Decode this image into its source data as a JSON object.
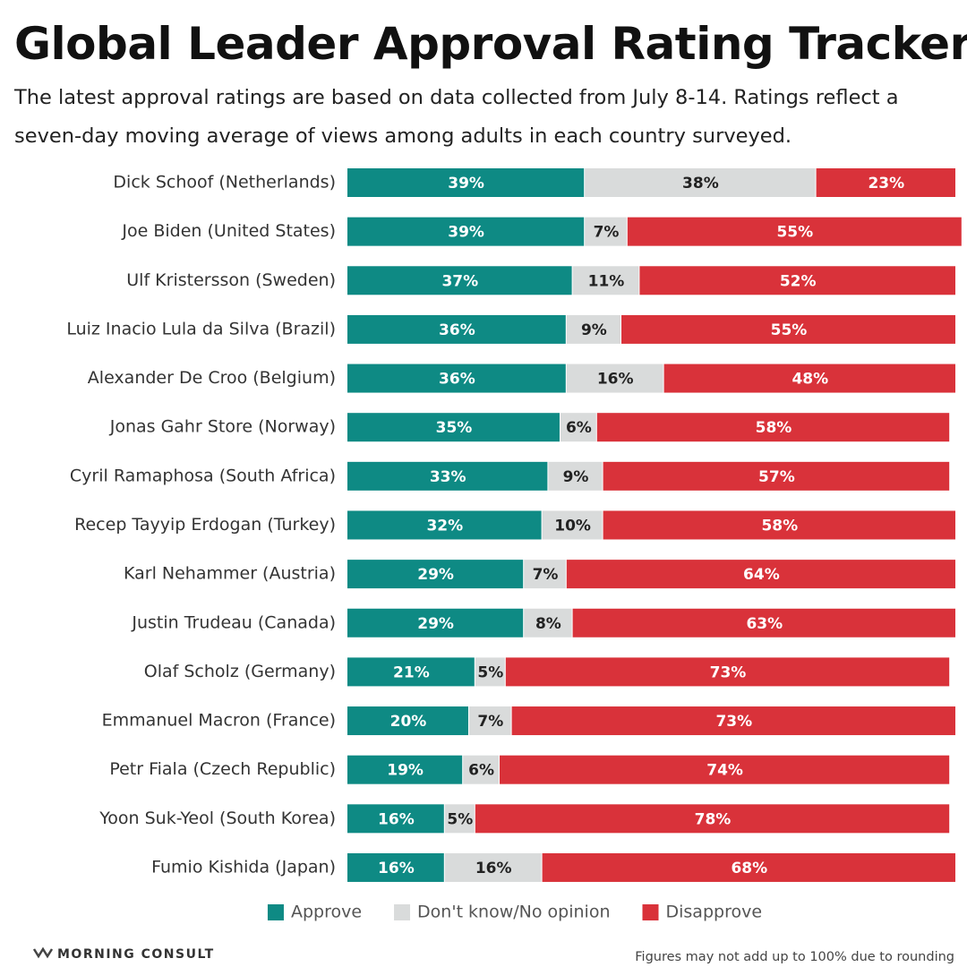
{
  "chart_data": {
    "type": "stacked-bar-horizontal",
    "title": "Global Leader Approval Rating Tracker",
    "subtitle": "The latest approval ratings are based on data collected from July 8-14. Ratings reflect a seven-day moving average of views among adults in each country surveyed.",
    "categories": [
      "Dick Schoof (Netherlands)",
      "Joe Biden (United States)",
      "Ulf Kristersson (Sweden)",
      "Luiz Inacio Lula da Silva (Brazil)",
      "Alexander De Croo (Belgium)",
      "Jonas Gahr Store (Norway)",
      "Cyril Ramaphosa (South Africa)",
      "Recep Tayyip Erdogan (Turkey)",
      "Karl Nehammer (Austria)",
      "Justin Trudeau (Canada)",
      "Olaf Scholz (Germany)",
      "Emmanuel Macron (France)",
      "Petr Fiala (Czech Republic)",
      "Yoon Suk-Yeol (South Korea)",
      "Fumio Kishida (Japan)"
    ],
    "series": [
      {
        "name": "Approve",
        "color": "#0e8a84",
        "label_color": "#ffffff",
        "values": [
          39,
          39,
          37,
          36,
          36,
          35,
          33,
          32,
          29,
          29,
          21,
          20,
          19,
          16,
          16
        ],
        "value_labels": [
          "39%",
          "39%",
          "37%",
          "36%",
          "36%",
          "35%",
          "33%",
          "32%",
          "29%",
          "29%",
          "21%",
          "20%",
          "19%",
          "16%",
          "16%"
        ]
      },
      {
        "name": "Don't know/No opinion",
        "color": "#d9dbdb",
        "label_color": "#222222",
        "values": [
          38,
          7,
          11,
          9,
          16,
          6,
          9,
          10,
          7,
          8,
          5,
          7,
          6,
          5,
          16
        ],
        "value_labels": [
          "38%",
          "7%",
          "11%",
          "9%",
          "16%",
          "6%",
          "9%",
          "10%",
          "7%",
          "8%",
          "5%",
          "7%",
          "6%",
          "5%",
          "16%"
        ]
      },
      {
        "name": "Disapprove",
        "color": "#d9323a",
        "label_color": "#ffffff",
        "values": [
          23,
          55,
          52,
          55,
          48,
          58,
          57,
          58,
          64,
          63,
          73,
          73,
          74,
          78,
          68
        ],
        "value_labels": [
          "23%",
          "55%",
          "52%",
          "55%",
          "48%",
          "58%",
          "57%",
          "58%",
          "64%",
          "63%",
          "73%",
          "73%",
          "74%",
          "78%",
          "68%"
        ]
      }
    ],
    "xlim": [
      0,
      100
    ],
    "source": "MORNING CONSULT",
    "note": "Figures may not add up to 100% due to rounding"
  }
}
